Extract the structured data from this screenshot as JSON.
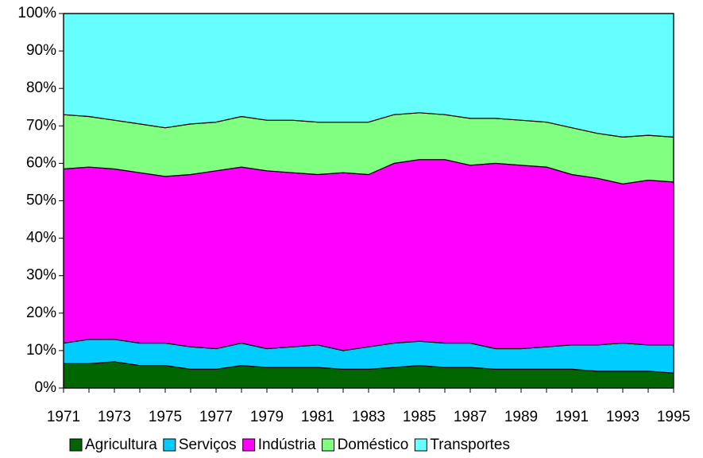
{
  "chart_data": {
    "type": "stacked_area",
    "categories": [
      "1971",
      null,
      "1973",
      null,
      "1975",
      null,
      "1977",
      null,
      "1979",
      null,
      "1981",
      null,
      "1983",
      null,
      "1985",
      null,
      "1987",
      null,
      "1989",
      null,
      "1991",
      null,
      "1993",
      null,
      "1995"
    ],
    "series": [
      {
        "name": "Agricultura",
        "color": "#006600",
        "values": [
          6.5,
          6.5,
          7,
          6,
          6,
          5,
          5,
          6,
          5.5,
          5.5,
          5.5,
          5,
          5,
          5.5,
          6,
          5.5,
          5.5,
          5,
          5,
          5,
          5,
          4.5,
          4.5,
          4.5,
          4
        ]
      },
      {
        "name": "Serviços",
        "color": "#00ccff",
        "values": [
          5.5,
          6.5,
          6,
          6,
          6,
          6,
          5.5,
          6,
          5,
          5.5,
          6,
          5,
          6,
          6.5,
          6.5,
          6.5,
          6.5,
          5.5,
          5.5,
          6,
          6.5,
          7,
          7.5,
          7,
          7.5
        ]
      },
      {
        "name": "Indústria",
        "color": "#ff00ff",
        "values": [
          46.5,
          46,
          45.5,
          45.5,
          44.5,
          46,
          47.5,
          47,
          47.5,
          46.5,
          45.5,
          47.5,
          46,
          48,
          48.5,
          49,
          47.5,
          49.5,
          49,
          48,
          45.5,
          44.5,
          42.5,
          44,
          43.5
        ]
      },
      {
        "name": "Doméstico",
        "color": "#80ff80",
        "values": [
          14.5,
          13.5,
          13,
          13,
          13,
          13.5,
          13,
          13.5,
          13.5,
          14,
          14,
          13.5,
          14,
          13,
          12.5,
          12,
          12.5,
          12,
          12,
          12,
          12.5,
          12,
          12.5,
          12,
          12
        ]
      },
      {
        "name": "Transportes",
        "color": "#66ffff",
        "values": [
          27,
          27.5,
          28.5,
          29.5,
          30.5,
          29.5,
          29,
          27.5,
          28.5,
          28.5,
          29,
          29,
          29,
          27,
          26.5,
          27,
          28,
          28,
          28.5,
          29,
          30.5,
          32,
          33,
          32.5,
          33
        ]
      }
    ],
    "ylim": [
      0,
      100
    ],
    "yticks": [
      {
        "value": 0,
        "label": "0%"
      },
      {
        "value": 10,
        "label": "10%"
      },
      {
        "value": 20,
        "label": "20%"
      },
      {
        "value": 30,
        "label": "30%"
      },
      {
        "value": 40,
        "label": "40%"
      },
      {
        "value": 50,
        "label": "50%"
      },
      {
        "value": 60,
        "label": "60%"
      },
      {
        "value": 70,
        "label": "70%"
      },
      {
        "value": 80,
        "label": "80%"
      },
      {
        "value": 90,
        "label": "90%"
      },
      {
        "value": 100,
        "label": "100%"
      }
    ],
    "grid": false
  }
}
